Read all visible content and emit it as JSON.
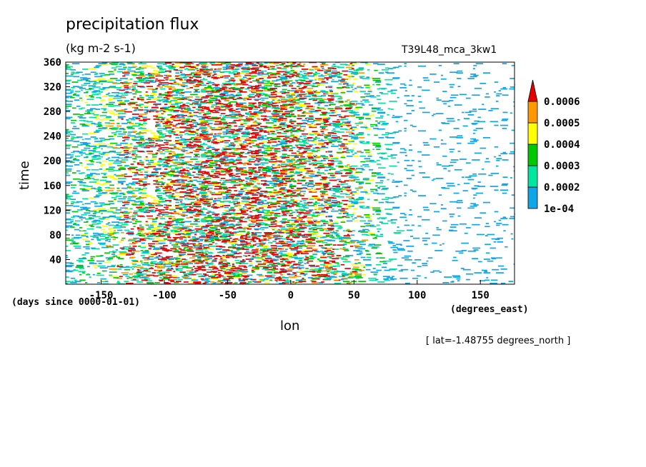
{
  "header": {
    "title": "precipitation flux",
    "units": "(kg m-2 s-1)",
    "run_label": "T39L48_mca_3kw1"
  },
  "axis_notes": {
    "time_origin": "(days since 0000-01-01)",
    "lon_units": "(degrees_east)",
    "lat_note": "[ lat=-1.48755 degrees_north ]"
  },
  "chart_data": {
    "type": "heatmap",
    "xlabel": "lon",
    "ylabel": "time",
    "xlim": [
      -178,
      177
    ],
    "ylim": [
      0,
      360
    ],
    "x_ticks": [
      -150,
      -100,
      -50,
      0,
      50,
      100,
      150
    ],
    "y_ticks": [
      40,
      80,
      120,
      160,
      200,
      240,
      280,
      320,
      360
    ],
    "colorbar": {
      "levels": [
        0.0001,
        0.0002,
        0.0003,
        0.0004,
        0.0005,
        0.0006
      ],
      "level_labels": [
        "1e-04",
        "0.0002",
        "0.0003",
        "0.0004",
        "0.0005",
        "0.0006"
      ],
      "colors": [
        "#0ea5e9",
        "#00e5a0",
        "#00c800",
        "#ffff00",
        "#ff9900",
        "#e60000"
      ],
      "extend": "max"
    },
    "activity_profile": {
      "description_lon": [
        -178,
        -150,
        -120,
        -90,
        -60,
        -30,
        0,
        30,
        60,
        80,
        100,
        130,
        177
      ],
      "relative_intensity": [
        0.35,
        0.45,
        0.7,
        0.85,
        0.95,
        0.95,
        0.85,
        0.7,
        0.45,
        0.2,
        0.08,
        0.12,
        0.12
      ]
    }
  }
}
